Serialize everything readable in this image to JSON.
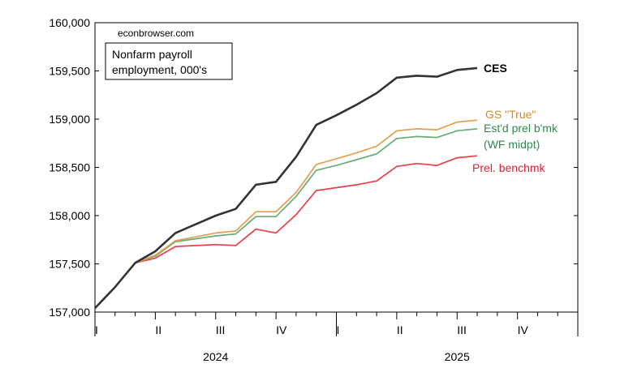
{
  "chart_data": {
    "type": "line",
    "source_label": "econbrowser.com",
    "title_lines": [
      "Nonfarm payroll",
      "employment, 000's"
    ],
    "ylim": [
      157000,
      160000
    ],
    "yticks": [
      157000,
      157500,
      158000,
      158500,
      159000,
      159500,
      160000
    ],
    "ytick_labels": [
      "157,000",
      "157,500",
      "158,000",
      "158,500",
      "159,000",
      "159,500",
      "160,000"
    ],
    "x_months": [
      "2024-01",
      "2024-02",
      "2024-03",
      "2024-04",
      "2024-05",
      "2024-06",
      "2024-07",
      "2024-08",
      "2024-09",
      "2024-10",
      "2024-11",
      "2024-12",
      "2025-01",
      "2025-02",
      "2025-03",
      "2025-04",
      "2025-05",
      "2025-06",
      "2025-07",
      "2025-08"
    ],
    "xlim": [
      "2024-01",
      "2025-12"
    ],
    "quarter_labels": [
      "I",
      "II",
      "III",
      "IV",
      "I",
      "II",
      "III",
      "IV"
    ],
    "year_labels": [
      "2024",
      "2025"
    ],
    "series": [
      {
        "name": "CES",
        "color": "#333333",
        "values": [
          157040,
          157260,
          157510,
          157630,
          157820,
          157910,
          158000,
          158070,
          158320,
          158350,
          158610,
          158940,
          159040,
          159150,
          159270,
          159430,
          159450,
          159440,
          159510,
          159530
        ]
      },
      {
        "name": "GS \"True\"",
        "color": "#e0a050",
        "values": [
          157040,
          157260,
          157510,
          157590,
          157740,
          157780,
          157820,
          157840,
          158040,
          158040,
          158240,
          158530,
          158590,
          158650,
          158720,
          158880,
          158900,
          158890,
          158970,
          158990
        ]
      },
      {
        "name_lines": [
          "Est'd prel b'mk",
          "(WF midpt)"
        ],
        "color": "#6aab78",
        "values": [
          157040,
          157260,
          157510,
          157580,
          157730,
          157760,
          157790,
          157810,
          157990,
          157990,
          158200,
          158470,
          158520,
          158580,
          158640,
          158800,
          158820,
          158810,
          158880,
          158900
        ]
      },
      {
        "name": "Prel. benchmk",
        "color": "#e8404a",
        "values": [
          157040,
          157260,
          157510,
          157560,
          157680,
          157690,
          157700,
          157690,
          157860,
          157820,
          158010,
          158260,
          158290,
          158320,
          158360,
          158510,
          158540,
          158520,
          158600,
          158620
        ]
      }
    ],
    "grid": false,
    "legend": "inline labels at line ends"
  }
}
